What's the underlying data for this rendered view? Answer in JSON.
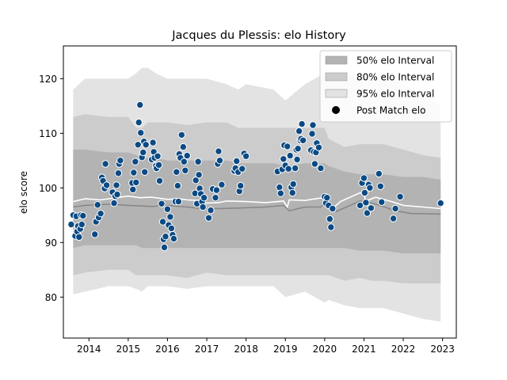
{
  "chart_data": {
    "type": "scatter",
    "title": "Jacques du Plessis: elo History",
    "ylabel": "elo score",
    "xlabel": "",
    "xlim": [
      2013.35,
      2023.35
    ],
    "ylim": [
      72.5,
      126
    ],
    "x_ticks": [
      2014,
      2015,
      2016,
      2017,
      2018,
      2019,
      2020,
      2021,
      2022,
      2023
    ],
    "y_ticks": [
      80,
      90,
      100,
      110,
      120
    ],
    "legend_position": "top-right",
    "legend": [
      {
        "label": "50% elo Interval",
        "color": "#b3b3b3"
      },
      {
        "label": "80% elo Interval",
        "color": "#cccccc"
      },
      {
        "label": "95% elo Interval",
        "color": "#e3e3e3"
      },
      {
        "label": "Post Match elo",
        "color": "#000000"
      }
    ],
    "band_x": [
      2013.6,
      2013.9,
      2014.5,
      2015.0,
      2015.2,
      2015.35,
      2015.5,
      2015.7,
      2016.0,
      2016.5,
      2017.0,
      2017.5,
      2017.8,
      2018.0,
      2018.7,
      2019.0,
      2019.5,
      2020.0,
      2020.1,
      2020.5,
      2020.9,
      2021.2,
      2021.5,
      2022.0,
      2022.5,
      2022.95
    ],
    "band95_upper": [
      118,
      120,
      120,
      120,
      121,
      122,
      122,
      121,
      120,
      120,
      120,
      119,
      118,
      119,
      118,
      116,
      119,
      121,
      121,
      121,
      120,
      121,
      121,
      119,
      117,
      115
    ],
    "band95_lower": [
      80.5,
      81,
      82,
      82,
      81.5,
      81,
      82,
      82,
      82,
      81.5,
      82,
      82,
      82,
      82,
      82,
      80,
      81,
      79,
      79.5,
      78.5,
      78,
      78,
      78,
      77,
      76,
      75.5
    ],
    "band80_upper": [
      113,
      113.5,
      113,
      113,
      111,
      111,
      112,
      112,
      112,
      111.5,
      112,
      112,
      111,
      111,
      111,
      111,
      111,
      111,
      109,
      107.5,
      108,
      108,
      108,
      107,
      106,
      105.5
    ],
    "band80_lower": [
      84,
      84.5,
      85,
      85,
      84,
      84,
      84,
      84,
      84,
      83.5,
      84.5,
      84,
      84,
      84,
      84,
      84,
      84,
      84,
      84,
      83,
      83.5,
      83,
      83,
      82.5,
      82.5,
      82.5
    ],
    "band50_upper": [
      107,
      107,
      106.5,
      106.5,
      106,
      105.5,
      105.5,
      105.5,
      105,
      105,
      105,
      105,
      104.5,
      104.5,
      104.5,
      104,
      104.5,
      104.5,
      104,
      103,
      102.5,
      102.5,
      102.5,
      102,
      102,
      101.5
    ],
    "band50_lower": [
      89,
      89.5,
      89.5,
      89.5,
      89.5,
      89,
      89,
      89,
      89,
      89,
      89,
      89,
      89,
      89,
      89,
      89,
      89,
      89,
      89,
      89,
      88.5,
      88.5,
      88.5,
      88,
      88,
      88
    ],
    "median_line": {
      "x": [
        2013.6,
        2013.9,
        2014.5,
        2015.0,
        2015.3,
        2015.6,
        2016.0,
        2016.5,
        2016.9,
        2017.3,
        2017.8,
        2018.5,
        2018.95,
        2019.1,
        2019.5,
        2019.9,
        2020.05,
        2020.3,
        2020.9,
        2021.1,
        2021.4,
        2021.8,
        2022.2,
        2022.95
      ],
      "y": [
        96.5,
        96.8,
        97,
        96.8,
        96.7,
        96.6,
        96.8,
        96.5,
        96.2,
        96.2,
        96.3,
        96.5,
        96.8,
        95.8,
        96.5,
        96.5,
        97.5,
        95.7,
        97.6,
        97.4,
        96.8,
        95.8,
        95.3,
        95.2
      ]
    },
    "mean_line": {
      "x": [
        2013.6,
        2013.9,
        2014.3,
        2014.8,
        2015.0,
        2015.3,
        2015.6,
        2016.0,
        2016.3,
        2016.5,
        2016.8,
        2017.0,
        2017.3,
        2017.5,
        2018.0,
        2018.5,
        2018.95,
        2019.05,
        2019.1,
        2019.5,
        2019.95,
        2020.05,
        2020.2,
        2020.4,
        2020.9,
        2021.0,
        2021.05,
        2021.3,
        2021.7,
        2022.0,
        2022.5,
        2022.95
      ],
      "y": [
        97.5,
        98,
        97.8,
        98.3,
        98.5,
        98.2,
        98.3,
        97.9,
        98,
        97.8,
        97.7,
        97.2,
        97.3,
        97.6,
        97.5,
        97.3,
        97.6,
        96.5,
        97.8,
        97.7,
        98.2,
        97.5,
        96.2,
        97.5,
        99.1,
        98.8,
        97.6,
        98.3,
        97.5,
        96.8,
        96.5,
        96.2
      ]
    },
    "points": [
      {
        "x": 2013.55,
        "y": 93.3
      },
      {
        "x": 2013.6,
        "y": 95.0
      },
      {
        "x": 2013.65,
        "y": 91.2
      },
      {
        "x": 2013.68,
        "y": 94.8
      },
      {
        "x": 2013.7,
        "y": 92.0
      },
      {
        "x": 2013.72,
        "y": 93.0
      },
      {
        "x": 2013.75,
        "y": 91.0
      },
      {
        "x": 2013.78,
        "y": 92.5
      },
      {
        "x": 2013.8,
        "y": 95.0
      },
      {
        "x": 2013.82,
        "y": 93.3
      },
      {
        "x": 2013.85,
        "y": 94.9
      },
      {
        "x": 2014.15,
        "y": 91.5
      },
      {
        "x": 2014.18,
        "y": 93.8
      },
      {
        "x": 2014.22,
        "y": 96.9
      },
      {
        "x": 2014.25,
        "y": 94.6
      },
      {
        "x": 2014.3,
        "y": 95.3
      },
      {
        "x": 2014.33,
        "y": 101.9
      },
      {
        "x": 2014.36,
        "y": 101.3
      },
      {
        "x": 2014.4,
        "y": 99.9
      },
      {
        "x": 2014.42,
        "y": 104.4
      },
      {
        "x": 2014.45,
        "y": 100.5
      },
      {
        "x": 2014.6,
        "y": 99.2
      },
      {
        "x": 2014.64,
        "y": 97.2
      },
      {
        "x": 2014.67,
        "y": 98.5
      },
      {
        "x": 2014.7,
        "y": 100.5
      },
      {
        "x": 2014.72,
        "y": 98.8
      },
      {
        "x": 2014.75,
        "y": 102.7
      },
      {
        "x": 2014.77,
        "y": 104.4
      },
      {
        "x": 2014.8,
        "y": 105.0
      },
      {
        "x": 2015.1,
        "y": 100.9
      },
      {
        "x": 2015.12,
        "y": 99.7
      },
      {
        "x": 2015.14,
        "y": 102.8
      },
      {
        "x": 2015.18,
        "y": 104.8
      },
      {
        "x": 2015.2,
        "y": 101.0
      },
      {
        "x": 2015.25,
        "y": 107.9
      },
      {
        "x": 2015.27,
        "y": 112.0
      },
      {
        "x": 2015.3,
        "y": 115.2
      },
      {
        "x": 2015.32,
        "y": 110.1
      },
      {
        "x": 2015.35,
        "y": 105.6
      },
      {
        "x": 2015.38,
        "y": 106.5
      },
      {
        "x": 2015.4,
        "y": 108.5
      },
      {
        "x": 2015.42,
        "y": 102.9
      },
      {
        "x": 2015.45,
        "y": 107.9
      },
      {
        "x": 2015.6,
        "y": 105.2
      },
      {
        "x": 2015.63,
        "y": 108.3
      },
      {
        "x": 2015.65,
        "y": 106.6
      },
      {
        "x": 2015.67,
        "y": 105.5
      },
      {
        "x": 2015.7,
        "y": 104.0
      },
      {
        "x": 2015.72,
        "y": 103.6
      },
      {
        "x": 2015.75,
        "y": 105.8
      },
      {
        "x": 2015.78,
        "y": 104.2
      },
      {
        "x": 2015.8,
        "y": 101.3
      },
      {
        "x": 2015.85,
        "y": 97.1
      },
      {
        "x": 2015.88,
        "y": 93.8
      },
      {
        "x": 2015.9,
        "y": 90.6
      },
      {
        "x": 2015.92,
        "y": 89.1
      },
      {
        "x": 2015.95,
        "y": 91.1
      },
      {
        "x": 2016.0,
        "y": 96.1
      },
      {
        "x": 2016.03,
        "y": 93.2
      },
      {
        "x": 2016.07,
        "y": 94.7
      },
      {
        "x": 2016.1,
        "y": 92.6
      },
      {
        "x": 2016.13,
        "y": 91.4
      },
      {
        "x": 2016.16,
        "y": 90.7
      },
      {
        "x": 2016.2,
        "y": 97.5
      },
      {
        "x": 2016.23,
        "y": 102.9
      },
      {
        "x": 2016.26,
        "y": 100.4
      },
      {
        "x": 2016.28,
        "y": 97.5
      },
      {
        "x": 2016.3,
        "y": 106.2
      },
      {
        "x": 2016.33,
        "y": 105.5
      },
      {
        "x": 2016.36,
        "y": 109.7
      },
      {
        "x": 2016.4,
        "y": 107.5
      },
      {
        "x": 2016.42,
        "y": 104.8
      },
      {
        "x": 2016.45,
        "y": 103.2
      },
      {
        "x": 2016.5,
        "y": 105.9
      },
      {
        "x": 2016.7,
        "y": 99.0
      },
      {
        "x": 2016.72,
        "y": 101.4
      },
      {
        "x": 2016.75,
        "y": 97.1
      },
      {
        "x": 2016.78,
        "y": 104.8
      },
      {
        "x": 2016.8,
        "y": 102.4
      },
      {
        "x": 2016.82,
        "y": 99.9
      },
      {
        "x": 2016.85,
        "y": 98.9
      },
      {
        "x": 2016.88,
        "y": 97.5
      },
      {
        "x": 2016.9,
        "y": 96.5
      },
      {
        "x": 2016.93,
        "y": 98.2
      },
      {
        "x": 2017.05,
        "y": 94.5
      },
      {
        "x": 2017.1,
        "y": 95.9
      },
      {
        "x": 2017.15,
        "y": 99.8
      },
      {
        "x": 2017.22,
        "y": 98.2
      },
      {
        "x": 2017.25,
        "y": 99.6
      },
      {
        "x": 2017.28,
        "y": 104.4
      },
      {
        "x": 2017.3,
        "y": 106.7
      },
      {
        "x": 2017.33,
        "y": 105.0
      },
      {
        "x": 2017.38,
        "y": 100.6
      },
      {
        "x": 2017.7,
        "y": 103.1
      },
      {
        "x": 2017.73,
        "y": 103.6
      },
      {
        "x": 2017.76,
        "y": 104.9
      },
      {
        "x": 2017.8,
        "y": 102.9
      },
      {
        "x": 2017.83,
        "y": 99.4
      },
      {
        "x": 2017.86,
        "y": 100.4
      },
      {
        "x": 2017.9,
        "y": 103.5
      },
      {
        "x": 2017.95,
        "y": 106.3
      },
      {
        "x": 2018.0,
        "y": 105.8
      },
      {
        "x": 2018.8,
        "y": 103.0
      },
      {
        "x": 2018.85,
        "y": 100.1
      },
      {
        "x": 2018.88,
        "y": 99.0
      },
      {
        "x": 2018.92,
        "y": 103.4
      },
      {
        "x": 2018.95,
        "y": 105.3
      },
      {
        "x": 2018.97,
        "y": 107.8
      },
      {
        "x": 2019.0,
        "y": 104.1
      },
      {
        "x": 2019.05,
        "y": 107.6
      },
      {
        "x": 2019.08,
        "y": 103.5
      },
      {
        "x": 2019.12,
        "y": 105.9
      },
      {
        "x": 2019.15,
        "y": 100.1
      },
      {
        "x": 2019.18,
        "y": 99.1
      },
      {
        "x": 2019.2,
        "y": 100.7
      },
      {
        "x": 2019.25,
        "y": 103.6
      },
      {
        "x": 2019.28,
        "y": 107.0
      },
      {
        "x": 2019.3,
        "y": 105.2
      },
      {
        "x": 2019.32,
        "y": 107.2
      },
      {
        "x": 2019.35,
        "y": 110.4
      },
      {
        "x": 2019.38,
        "y": 108.7
      },
      {
        "x": 2019.4,
        "y": 109.0
      },
      {
        "x": 2019.42,
        "y": 111.7
      },
      {
        "x": 2019.45,
        "y": 108.7
      },
      {
        "x": 2019.65,
        "y": 106.9
      },
      {
        "x": 2019.68,
        "y": 109.9
      },
      {
        "x": 2019.7,
        "y": 111.5
      },
      {
        "x": 2019.72,
        "y": 106.6
      },
      {
        "x": 2019.75,
        "y": 104.4
      },
      {
        "x": 2019.78,
        "y": 106.5
      },
      {
        "x": 2019.8,
        "y": 108.2
      },
      {
        "x": 2019.85,
        "y": 107.4
      },
      {
        "x": 2019.9,
        "y": 103.6
      },
      {
        "x": 2020.0,
        "y": 98.4
      },
      {
        "x": 2020.03,
        "y": 97.2
      },
      {
        "x": 2020.06,
        "y": 98.2
      },
      {
        "x": 2020.1,
        "y": 96.8
      },
      {
        "x": 2020.13,
        "y": 94.3
      },
      {
        "x": 2020.16,
        "y": 92.8
      },
      {
        "x": 2020.2,
        "y": 96.2
      },
      {
        "x": 2020.9,
        "y": 96.8
      },
      {
        "x": 2020.95,
        "y": 100.9
      },
      {
        "x": 2021.0,
        "y": 101.8
      },
      {
        "x": 2021.02,
        "y": 99.1
      },
      {
        "x": 2021.05,
        "y": 97.3
      },
      {
        "x": 2021.08,
        "y": 95.4
      },
      {
        "x": 2021.12,
        "y": 100.6
      },
      {
        "x": 2021.15,
        "y": 100.0
      },
      {
        "x": 2021.18,
        "y": 96.3
      },
      {
        "x": 2021.38,
        "y": 102.6
      },
      {
        "x": 2021.42,
        "y": 100.3
      },
      {
        "x": 2021.45,
        "y": 97.4
      },
      {
        "x": 2021.75,
        "y": 94.4
      },
      {
        "x": 2021.8,
        "y": 96.2
      },
      {
        "x": 2021.92,
        "y": 98.4
      },
      {
        "x": 2022.95,
        "y": 97.2
      }
    ]
  }
}
